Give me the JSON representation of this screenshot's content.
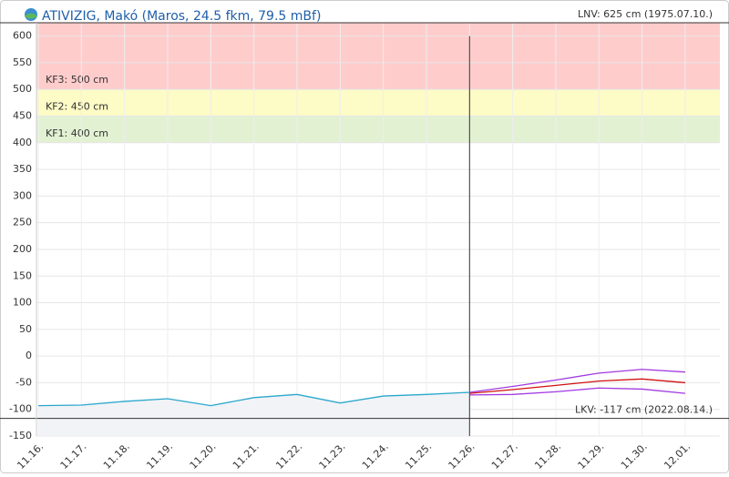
{
  "chart_data": {
    "type": "line",
    "title": "ATIVIZIG, Makó (Maros, 24.5 fkm, 79.5 mBf)",
    "x": [
      "11.16.",
      "11.17.",
      "11.18.",
      "11.19.",
      "11.20.",
      "11.21.",
      "11.22.",
      "11.23.",
      "11.24.",
      "11.25.",
      "11.26.",
      "11.27.",
      "11.28.",
      "11.29.",
      "11.30.",
      "12.01."
    ],
    "series": [
      {
        "color": "#2aa7cc",
        "values": [
          -93,
          -92,
          -85,
          -80,
          -93,
          -78,
          -72,
          -88,
          -75,
          -72,
          -68,
          null,
          null,
          null,
          null,
          null
        ]
      },
      {
        "color": "#a23ae0",
        "values": [
          null,
          null,
          null,
          null,
          null,
          null,
          null,
          null,
          null,
          null,
          -68,
          -57,
          -45,
          -32,
          -25,
          -30
        ]
      },
      {
        "color": "#d01010",
        "values": [
          null,
          null,
          null,
          null,
          null,
          null,
          null,
          null,
          null,
          null,
          -70,
          -63,
          -55,
          -47,
          -43,
          -50
        ]
      },
      {
        "color": "#a23ae0",
        "values": [
          null,
          null,
          null,
          null,
          null,
          null,
          null,
          null,
          null,
          null,
          -73,
          -72,
          -67,
          -60,
          -62,
          -70
        ]
      }
    ],
    "bands": [
      {
        "label": "KF3: 500 cm",
        "from": 500,
        "to": 625,
        "color": "#ffcccc"
      },
      {
        "label": "KF2: 450 cm",
        "from": 450,
        "to": 500,
        "color": "#fdfbc6"
      },
      {
        "label": "KF1: 400 cm",
        "from": 400,
        "to": 450,
        "color": "#e3f1d3"
      }
    ],
    "reference_lines": [
      {
        "label": "LNV: 625 cm (1975.07.10.)",
        "value": 625
      },
      {
        "label": "LKV: -117 cm (2022.08.14.)",
        "value": -117
      }
    ],
    "now": "11.26.",
    "ylim": [
      -150,
      625
    ],
    "yticks": [
      -150,
      -100,
      -50,
      0,
      50,
      100,
      150,
      200,
      250,
      300,
      350,
      400,
      450,
      500,
      550,
      600
    ],
    "grid": true
  }
}
